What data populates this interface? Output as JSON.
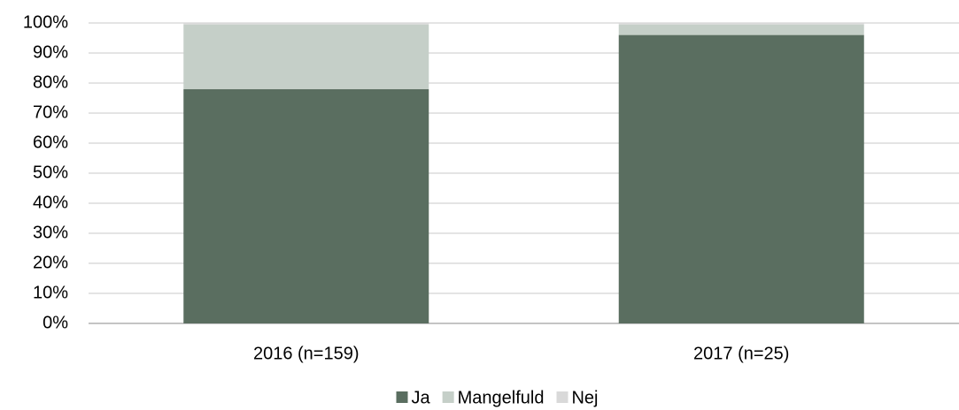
{
  "chart_data": {
    "type": "stacked_bar",
    "categories": [
      "2016 (n=159)",
      "2017 (n=25)"
    ],
    "series": [
      {
        "name": "Ja",
        "color": "#5a6e60",
        "values": [
          78,
          96
        ]
      },
      {
        "name": "Mangelfuld",
        "color": "#c5cfc8",
        "values": [
          21.5,
          3.5
        ]
      },
      {
        "name": "Nej",
        "color": "#d9d9d9",
        "values": [
          0.5,
          0.5
        ]
      }
    ],
    "ylim": [
      0,
      100
    ],
    "yticks": [
      {
        "value": 0,
        "label": "0%"
      },
      {
        "value": 10,
        "label": "10%"
      },
      {
        "value": 20,
        "label": "20%"
      },
      {
        "value": 30,
        "label": "30%"
      },
      {
        "value": 40,
        "label": "40%"
      },
      {
        "value": 50,
        "label": "50%"
      },
      {
        "value": 60,
        "label": "60%"
      },
      {
        "value": 70,
        "label": "70%"
      },
      {
        "value": 80,
        "label": "80%"
      },
      {
        "value": 90,
        "label": "90%"
      },
      {
        "value": 100,
        "label": "100%"
      }
    ],
    "grid": true,
    "legend": "bottom"
  }
}
